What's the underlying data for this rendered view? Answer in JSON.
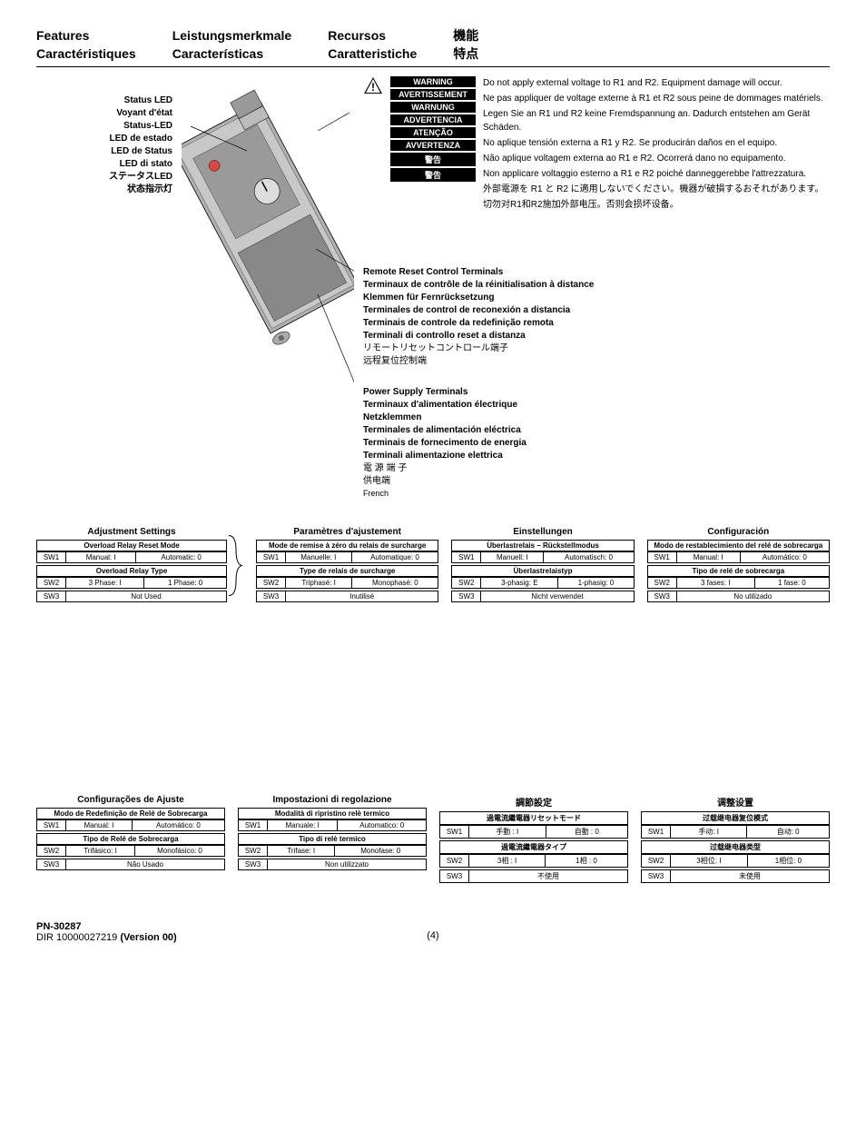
{
  "header": {
    "col1": [
      "Features",
      "Caractéristiques"
    ],
    "col2": [
      "Leistungsmerkmale",
      "Características"
    ],
    "col3": [
      "Recursos",
      "Caratteristiche"
    ],
    "col4": [
      "機能",
      "特点"
    ]
  },
  "status_led_labels": [
    "Status LED",
    "Voyant d'état",
    "Status-LED",
    "LED de estado",
    "LED de Status",
    "LED di stato",
    "ステータスLED",
    "状态指示灯"
  ],
  "warnings": {
    "labels": [
      "WARNING",
      "AVERTISSEMENT",
      "WARNUNG",
      "ADVERTENCIA",
      "ATENÇÃO",
      "AVVERTENZA",
      "警告",
      "警告"
    ],
    "texts": [
      "Do not apply external voltage to R1 and R2. Equipment damage will occur.",
      "Ne pas appliquer de voltage externe à R1 et R2 sous peine de dommages matériels.",
      "Legen Sie an R1 und R2 keine Fremdspannung an. Dadurch entstehen am Gerät Schäden.",
      "No aplique tensión externa a R1 y R2. Se producirán daños en el equipo.",
      "Não aplique voltagem externa ao R1 e R2. Ocorrerá dano no equipamento.",
      "Non applicare voltaggio esterno a R1 e R2 poiché danneggerebbe l'attrezzatura.",
      "外部電源を R1 と R2 に適用しないでください。機器が破損するおそれがあります。",
      "切勿对R1和R2施加外部电压。否则会损坏设备。"
    ]
  },
  "remote_reset": [
    "Remote Reset Control Terminals",
    "Terminaux de contrôle de la réinitialisation à distance",
    "Klemmen für Fernrücksetzung",
    "Terminales de control de reconexión a distancia",
    "Terminais de controle da redefinição remota",
    "Terminali di controllo reset a distanza",
    "リモートリセットコントロール端子",
    "远程复位控制端"
  ],
  "power_supply": [
    "Power Supply Terminals",
    "Terminaux d'alimentation électrique",
    "Netzklemmen",
    "Terminales de alimentación eléctrica",
    "Terminais de fornecimento de energia",
    "Terminali alimentazione elettrica",
    "電 源 端 子",
    "供电端"
  ],
  "power_supply_note": "French",
  "settings": [
    {
      "title": "Adjustment Settings",
      "sub1": "Overload Relay Reset Mode",
      "r1a": "Manual: I",
      "r1b": "Automatic: 0",
      "sub2": "Overload Relay Type",
      "r2a": "3 Phase: I",
      "r2b": "1 Phase: 0",
      "r3": "Not Used"
    },
    {
      "title": "Paramètres d'ajustement",
      "sub1": "Mode de remise à zéro du relais de surcharge",
      "r1a": "Manuelle: I",
      "r1b": "Automatique: 0",
      "sub2": "Type de relais de surcharge",
      "r2a": "Triphasé: I",
      "r2b": "Monophasé: 0",
      "r3": "Inutilisé"
    },
    {
      "title": "Einstellungen",
      "sub1": "Überlastrelais – Rückstellmodus",
      "r1a": "Manuell: I",
      "r1b": "Automatisch: 0",
      "sub2": "Überlastrelaistyp",
      "r2a": "3-phasig: E",
      "r2b": "1-phasig: 0",
      "r3": "Nicht verwendet"
    },
    {
      "title": "Configuración",
      "sub1": "Modo de restablecimiento del relé de sobrecarga",
      "r1a": "Manual: I",
      "r1b": "Automático: 0",
      "sub2": "Tipo de relé de sobrecarga",
      "r2a": "3 fases: I",
      "r2b": "1 fase: 0",
      "r3": "No utilizado"
    }
  ],
  "settings2": [
    {
      "title": "Configurações de Ajuste",
      "sub1": "Modo de Redefinição de Relé de Sobrecarga",
      "r1a": "Manual: I",
      "r1b": "Automático: 0",
      "sub2": "Tipo de Relé de Sobrecarga",
      "r2a": "Trifásico: I",
      "r2b": "Monofásico: 0",
      "r3": "Não Usado"
    },
    {
      "title": "Impostazioni di regolazione",
      "sub1": "Modalità di ripristino relè termico",
      "r1a": "Manuale: I",
      "r1b": "Automatico: 0",
      "sub2": "Tipo di relè termico",
      "r2a": "Trifase: I",
      "r2b": "Monofase: 0",
      "r3": "Non utilizzato"
    },
    {
      "title": "調節設定",
      "sub1": "過電流繼電器リセットモード",
      "r1a": "手動 : I",
      "r1b": "自動 : 0",
      "sub2": "過電流繼電器タイプ",
      "r2a": "3相  :  I",
      "r2b": "1相  :    0",
      "r3": "不使用"
    },
    {
      "title": "调整设置",
      "sub1": "过载继电器复位模式",
      "r1a": "手动: I",
      "r1b": "自动: 0",
      "sub2": "过载继电器类型",
      "r2a": "3相位:  I",
      "r2b": "1相位:    0",
      "r3": "未使用"
    }
  ],
  "sw_labels": {
    "sw1": "SW1",
    "sw2": "SW2",
    "sw3": "SW3"
  },
  "footer": {
    "pn": "PN-30287",
    "dir_pre": "DIR 10000027219 ",
    "ver": "(Version 00)",
    "page": "(4)"
  }
}
